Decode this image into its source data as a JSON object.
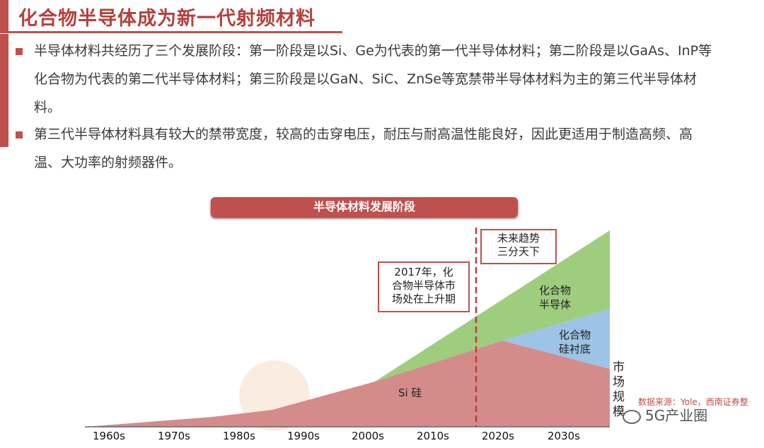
{
  "header": {
    "title": "化合物半导体成为新一代射频材料"
  },
  "bullets": [
    "半导体材料共经历了三个发展阶段：第一阶段是以Si、Ge为代表的第一代半导体材料；第二阶段是以GaAs、InP等化合物为代表的第二代半导体材料；第三阶段是以GaN、SiC、ZnSe等宽禁带半导体材料为主的第三代半导体材料。",
    "第三代半导体材料具有较大的禁带宽度，较高的击穿电压，耐压与耐高温性能良好，因此更适用于制造高频、高温、大功率的射频器件。"
  ],
  "chart_title": "半导体材料发展阶段",
  "chart_data": {
    "type": "area",
    "title": "半导体材料发展阶段",
    "categories": [
      "1960s",
      "1970s",
      "1980s",
      "1990s",
      "2000s",
      "2010s",
      "2020s",
      "2030s"
    ],
    "ylabel": "市场规模",
    "series": [
      {
        "name": "Si 硅",
        "color": "#d48c8a"
      },
      {
        "name": "化合物半导体",
        "color": "#9fcd7e"
      },
      {
        "name": "化合物硅衬底",
        "color": "#9dc3e6"
      }
    ],
    "annotations": [
      {
        "text": "2017年，化合物半导体市场处在上升期",
        "lines": [
          "2017年，化",
          "合物半导体市",
          "场处在上升期"
        ]
      },
      {
        "text": "未来趋势三分天下",
        "lines": [
          "未来趋势",
          "三分天下"
        ]
      }
    ],
    "divider_at": "2017"
  },
  "area_labels": {
    "si": "Si 硅",
    "compound": [
      "化合物",
      "半导体"
    ],
    "compound_si": [
      "化合物",
      "硅衬底"
    ]
  },
  "ylabel_chars": [
    "市",
    "场",
    "规",
    "模"
  ],
  "source": "数据来源：Yole，西南证券整",
  "watermark": "5G产业圈",
  "colors": {
    "accent": "#c0504d",
    "si": "#d48c8a",
    "compound": "#9fcd7e",
    "compound_si": "#9dc3e6"
  }
}
